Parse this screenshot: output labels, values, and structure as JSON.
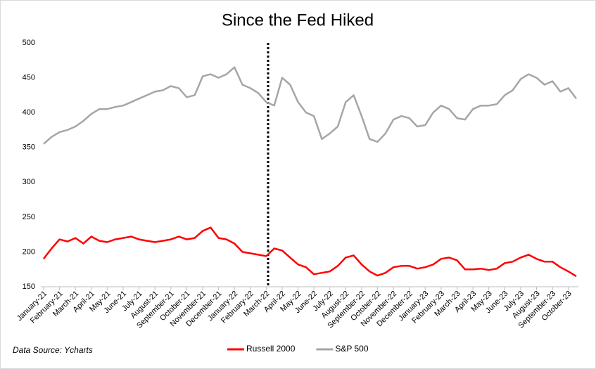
{
  "chart_data": {
    "type": "line",
    "title": "Since the Fed Hiked",
    "annotations": [
      "Data Source: Ycharts"
    ],
    "categories": [
      "January-21",
      null,
      "February-21",
      null,
      "March-21",
      null,
      "April-21",
      null,
      "May-21",
      null,
      "June-21",
      null,
      "July-21",
      null,
      "August-21",
      null,
      "September-21",
      null,
      "October-21",
      null,
      "November-21",
      null,
      "December-21",
      null,
      "January-22",
      null,
      "February-22",
      null,
      "March-22",
      null,
      "April-22",
      null,
      "May-22",
      null,
      "June-22",
      null,
      "July-22",
      null,
      "August-22",
      null,
      "September-22",
      null,
      "October-22",
      null,
      "November-22",
      null,
      "December-22",
      null,
      "January-23",
      null,
      "February-23",
      null,
      "March-23",
      null,
      "April-23",
      null,
      "May-23",
      null,
      "June-23",
      null,
      "July-23",
      null,
      "August-23",
      null,
      "September-23",
      null,
      "October-23",
      null
    ],
    "series": [
      {
        "name": "Russell 2000",
        "color": "#ff0000",
        "values": [
          190,
          205,
          218,
          215,
          220,
          212,
          222,
          216,
          214,
          218,
          220,
          222,
          218,
          216,
          214,
          216,
          218,
          222,
          218,
          220,
          230,
          235,
          220,
          218,
          212,
          200,
          198,
          196,
          194,
          205,
          202,
          192,
          182,
          178,
          168,
          170,
          172,
          180,
          192,
          195,
          182,
          172,
          166,
          170,
          178,
          180,
          180,
          176,
          178,
          182,
          190,
          192,
          188,
          175,
          175,
          176,
          174,
          176,
          184,
          186,
          192,
          196,
          190,
          186,
          186,
          178,
          172,
          165
        ]
      },
      {
        "name": "S&P 500",
        "color": "#a6a6a6",
        "values": [
          355,
          365,
          372,
          375,
          380,
          388,
          398,
          405,
          405,
          408,
          410,
          415,
          420,
          425,
          430,
          432,
          438,
          435,
          422,
          425,
          452,
          455,
          450,
          455,
          465,
          440,
          435,
          428,
          415,
          410,
          450,
          440,
          415,
          400,
          395,
          362,
          370,
          380,
          415,
          425,
          395,
          362,
          358,
          370,
          390,
          395,
          392,
          380,
          382,
          400,
          410,
          405,
          392,
          390,
          405,
          410,
          410,
          412,
          425,
          432,
          448,
          455,
          450,
          440,
          445,
          430,
          435,
          420
        ]
      }
    ],
    "ylim": [
      150,
      500
    ],
    "yticks": [
      150,
      200,
      250,
      300,
      350,
      400,
      450,
      500
    ],
    "grid": false,
    "legend": "bottom"
  }
}
